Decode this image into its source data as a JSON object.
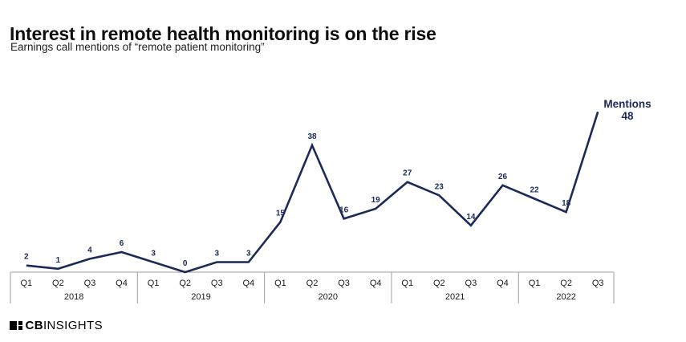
{
  "chart_data": {
    "type": "line",
    "title": "Interest in remote health monitoring is on the rise",
    "subtitle": "Earnings call mentions of “remote patient monitoring”",
    "x": [
      "Q1 2018",
      "Q2 2018",
      "Q3 2018",
      "Q4 2018",
      "Q1 2019",
      "Q2 2019",
      "Q3 2019",
      "Q4 2019",
      "Q1 2020",
      "Q2 2020",
      "Q3 2020",
      "Q4 2020",
      "Q1 2021",
      "Q2 2021",
      "Q3 2021",
      "Q4 2021",
      "Q1 2022",
      "Q2 2022",
      "Q3 2022"
    ],
    "values": [
      2,
      1,
      4,
      6,
      3,
      0,
      3,
      3,
      15,
      38,
      16,
      19,
      27,
      23,
      14,
      26,
      22,
      18,
      48
    ],
    "years": [
      {
        "label": "2018",
        "quarters": [
          "Q1",
          "Q2",
          "Q3",
          "Q4"
        ]
      },
      {
        "label": "2019",
        "quarters": [
          "Q1",
          "Q2",
          "Q3",
          "Q4"
        ]
      },
      {
        "label": "2020",
        "quarters": [
          "Q1",
          "Q2",
          "Q3",
          "Q4"
        ]
      },
      {
        "label": "2021",
        "quarters": [
          "Q1",
          "Q2",
          "Q3",
          "Q4"
        ]
      },
      {
        "label": "2022",
        "quarters": [
          "Q1",
          "Q2",
          "Q3"
        ]
      }
    ],
    "ylim": [
      0,
      48
    ],
    "grid": false,
    "point_labels_shown": true,
    "final_annotation": {
      "label": "Mentions",
      "value": "48"
    },
    "line_color": "#1b2a57",
    "point_label_color": "#1b2a57",
    "axis_line_color": "#9e9e9e",
    "axis_text_color": "#1a1a1a"
  },
  "logo": {
    "cb": "CB",
    "insights": "INSIGHTS"
  }
}
